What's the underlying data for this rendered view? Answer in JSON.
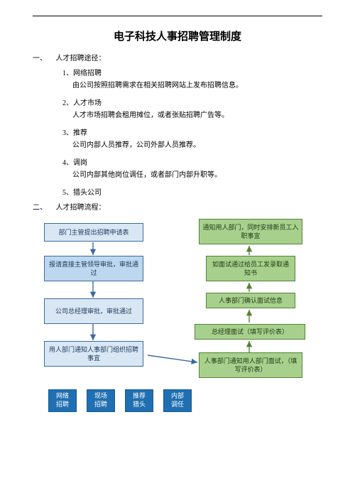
{
  "title": "电子科技人事招聘管理制度",
  "section1": {
    "num": "一、",
    "label": "人才招聘途径：",
    "items": [
      {
        "n": "1、",
        "t": "网络招聘",
        "d": "由公司按照招聘需求在相关招聘网站上发布招聘信息。"
      },
      {
        "n": "2、",
        "t": "人才市场",
        "d": "人才市场招聘会租用摊位，或者张贴招聘广告等。"
      },
      {
        "n": "3、",
        "t": "推荐",
        "d": "公司内部人员推荐，公司外部人员推荐。"
      },
      {
        "n": "4、",
        "t": "调岗",
        "d": "公司内部其他岗位调任，或者部门内部升职等。"
      },
      {
        "n": "5、",
        "t": "猎头公司",
        "d": ""
      }
    ]
  },
  "section2": {
    "num": "二、",
    "label": "人才招聘流程："
  },
  "flow": {
    "blue_boxes": [
      "部门主管提出招聘申请表",
      "报请直接主管领导审批，审批通过",
      "公司总经理审批，审批通过",
      "用人部门通知人事部门组织招聘事宜"
    ],
    "green_boxes": [
      "通知用人部门，同时安排新员工入职事宜",
      "如面试通过给员工发录取通知书",
      "人事部门确认面试信息",
      "总经理面试（填写评价表）",
      "人事部门通知用人部门面试，（填写评价表）"
    ],
    "methods": [
      "网络\n招聘",
      "现场\n招聘",
      "推荐\n猎头",
      "内部\n调任"
    ]
  },
  "style": {
    "blue_fill": "#d9e7f5",
    "green_fill": "#a8d08d",
    "lblue_fill": "#bdd7ee",
    "method_fill": "#1f6fb2",
    "border_blue": "#3a6aa0",
    "border_green": "#548235"
  }
}
